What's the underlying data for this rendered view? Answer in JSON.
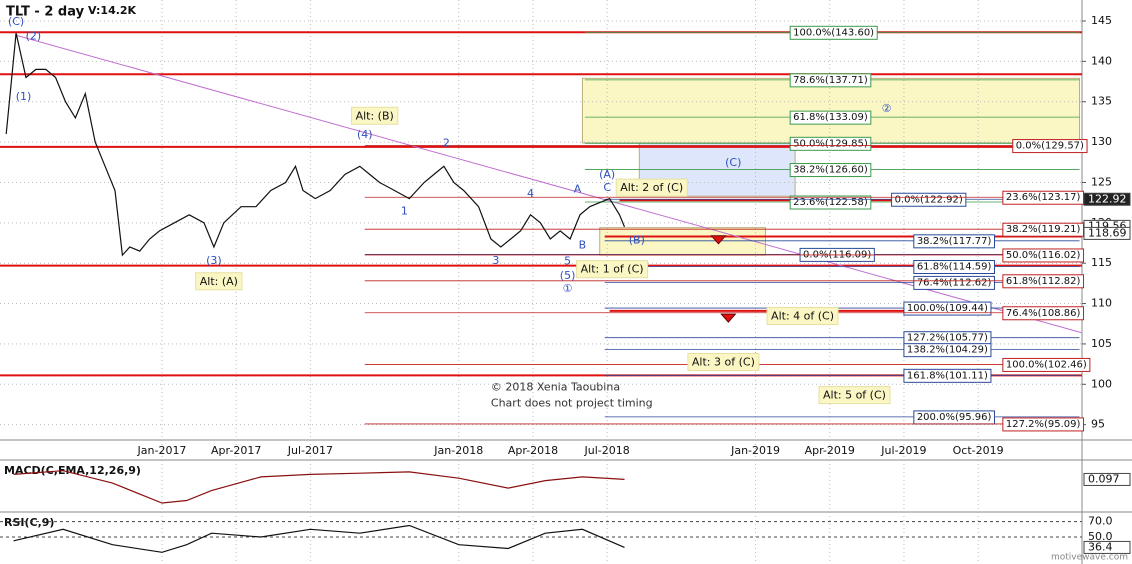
{
  "chart_data": {
    "type": "line",
    "title": "TLT - 2 day",
    "volume": "V:14.2K",
    "xlim": [
      -6.55,
      37.2
    ],
    "ylim": [
      93.1,
      147.6
    ],
    "xticks": [
      {
        "value": 0,
        "label": "Jan-2017"
      },
      {
        "value": 3,
        "label": "Apr-2017"
      },
      {
        "value": 6,
        "label": "Jul-2017"
      },
      {
        "value": 12,
        "label": "Jan-2018"
      },
      {
        "value": 15,
        "label": "Apr-2018"
      },
      {
        "value": 18,
        "label": "Jul-2018"
      },
      {
        "value": 24,
        "label": "Jan-2019"
      },
      {
        "value": 27,
        "label": "Apr-2019"
      },
      {
        "value": 30,
        "label": "Jul-2019"
      },
      {
        "value": 33,
        "label": "Oct-2019"
      }
    ],
    "yticks": [
      145,
      140,
      135,
      130,
      125,
      120,
      115,
      110,
      105,
      100,
      95
    ],
    "grid": true,
    "color": "#111111",
    "x": [
      -6.3,
      -5.9,
      -5.5,
      -5.1,
      -4.7,
      -4.3,
      -3.9,
      -3.5,
      -3.1,
      -2.7,
      -2.3,
      -1.9,
      -1.6,
      -1.3,
      -0.9,
      -0.5,
      -0.1,
      0.5,
      1.1,
      1.7,
      2.1,
      2.5,
      3.2,
      3.8,
      4.4,
      5.0,
      5.4,
      5.7,
      6.2,
      6.8,
      7.4,
      8.0,
      8.4,
      8.8,
      9.4,
      10.0,
      10.6,
      11.0,
      11.4,
      11.8,
      12.2,
      12.8,
      13.3,
      13.7,
      14.1,
      14.5,
      14.9,
      15.3,
      15.7,
      16.1,
      16.5,
      16.9,
      17.3,
      17.7,
      18.1,
      18.5,
      18.7
    ],
    "close": [
      131,
      143.5,
      138,
      139,
      139,
      138,
      135,
      133,
      136,
      130,
      127,
      124,
      116,
      117,
      116.5,
      118,
      119,
      120,
      121,
      120,
      117,
      120,
      122,
      122,
      124,
      125,
      127,
      124,
      123,
      124,
      126,
      127,
      126,
      125,
      124,
      123,
      125,
      126,
      127,
      125,
      124,
      122,
      118,
      117,
      118,
      119,
      121,
      120,
      118,
      119,
      118,
      121,
      122,
      122.5,
      123,
      121,
      119.5
    ],
    "trendline": {
      "color": "#c070d0",
      "x": [
        -5.94,
        37.17
      ],
      "y": [
        143.27,
        106.4
      ]
    },
    "zones": [
      {
        "color": "#fbf7c4",
        "x0": 17.0,
        "x1": 37.1,
        "y0": 129.9,
        "y1": 137.9
      },
      {
        "color": "#dde6fb",
        "x0": 19.3,
        "x1": 25.6,
        "y0": 123.3,
        "y1": 129.9
      },
      {
        "color": "#fbf7c4",
        "x0": 17.7,
        "x1": 24.4,
        "y0": 116.0,
        "y1": 119.4
      }
    ],
    "heavy_lines": {
      "color": "#e01010",
      "items": [
        {
          "value": 143.6,
          "from": -6.55,
          "to": 37.2
        },
        {
          "value": 138.4,
          "from": -6.55,
          "to": 37.2
        },
        {
          "value": 129.4,
          "from": -6.55,
          "to": 37.2
        },
        {
          "value": 114.7,
          "from": -6.55,
          "to": 37.2
        },
        {
          "value": 101.1,
          "from": -6.55,
          "to": 37.2
        },
        {
          "value": 122.8,
          "from": 18.5,
          "to": 30.0
        },
        {
          "value": 118.3,
          "from": 17.9,
          "to": 37.2
        },
        {
          "value": 109.1,
          "from": 18.1,
          "to": 30.0
        }
      ]
    },
    "levels": [
      {
        "value": 143.6,
        "label": "100.0%(143.60)",
        "from": 17.1,
        "to": 37.1,
        "label_at": 25.4,
        "color": "#3a9a4a"
      },
      {
        "value": 137.71,
        "label": "78.6%(137.71)",
        "from": 17.1,
        "to": 37.1,
        "label_at": 25.4,
        "color": "#3a9a4a"
      },
      {
        "value": 133.09,
        "label": "61.8%(133.09)",
        "from": 17.1,
        "to": 37.1,
        "label_at": 25.4,
        "color": "#3a9a4a"
      },
      {
        "value": 129.85,
        "label": "50.0%(129.85)",
        "from": 17.1,
        "to": 37.1,
        "label_at": 25.4,
        "color": "#3a9a4a"
      },
      {
        "value": 126.6,
        "label": "38.2%(126.60)",
        "from": 17.1,
        "to": 37.1,
        "label_at": 25.4,
        "color": "#3a9a4a"
      },
      {
        "value": 122.58,
        "label": "23.6%(122.58)",
        "from": 17.1,
        "to": 37.1,
        "label_at": 25.4,
        "color": "#3a9a4a"
      },
      {
        "value": 122.92,
        "label": "0.0%(122.92)",
        "from": 17.9,
        "to": 37.1,
        "label_at": 29.5,
        "color": "#2a4a9a"
      },
      {
        "value": 117.77,
        "label": "38.2%(117.77)",
        "from": 17.9,
        "to": 37.1,
        "label_at": 30.4,
        "color": "#2a4a9a"
      },
      {
        "value": 116.09,
        "label": "0.0%(116.09)",
        "from": 8.2,
        "to": 37.1,
        "label_at": 25.8,
        "color": "#2a4a9a"
      },
      {
        "value": 114.59,
        "label": "61.8%(114.59)",
        "from": 17.9,
        "to": 37.1,
        "label_at": 30.4,
        "color": "#2a4a9a"
      },
      {
        "value": 112.62,
        "label": "76.4%(112.62)",
        "from": 17.9,
        "to": 37.1,
        "label_at": 30.4,
        "color": "#2a4a9a"
      },
      {
        "value": 109.44,
        "label": "100.0%(109.44)",
        "from": 17.9,
        "to": 37.1,
        "label_at": 30.0,
        "color": "#2a4a9a"
      },
      {
        "value": 105.77,
        "label": "127.2%(105.77)",
        "from": 17.9,
        "to": 37.1,
        "label_at": 30.0,
        "color": "#2a4a9a"
      },
      {
        "value": 104.29,
        "label": "138.2%(104.29)",
        "from": 17.9,
        "to": 37.1,
        "label_at": 30.0,
        "color": "#2a4a9a"
      },
      {
        "value": 101.11,
        "label": "161.8%(101.11)",
        "from": 17.9,
        "to": 37.1,
        "label_at": 30.0,
        "color": "#2a4a9a"
      },
      {
        "value": 95.96,
        "label": "200.0%(95.96)",
        "from": 17.9,
        "to": 37.1,
        "label_at": 30.4,
        "color": "#2a4a9a"
      },
      {
        "value": 129.57,
        "label": "0.0%(129.57)",
        "from": 8.2,
        "to": 37.1,
        "label_at": 34.4,
        "color": "#c02020"
      },
      {
        "value": 123.17,
        "label": "23.6%(123.17)",
        "from": 8.2,
        "to": 37.1,
        "label_at": 34.0,
        "color": "#c02020"
      },
      {
        "value": 119.21,
        "label": "38.2%(119.21)",
        "from": 8.2,
        "to": 37.1,
        "label_at": 34.0,
        "color": "#c02020"
      },
      {
        "value": 116.02,
        "label": "50.0%(116.02)",
        "from": 8.2,
        "to": 37.1,
        "label_at": 34.0,
        "color": "#c02020"
      },
      {
        "value": 112.82,
        "label": "61.8%(112.82)",
        "from": 8.2,
        "to": 37.1,
        "label_at": 34.0,
        "color": "#c02020"
      },
      {
        "value": 108.86,
        "label": "76.4%(108.86)",
        "from": 8.2,
        "to": 37.1,
        "label_at": 34.0,
        "color": "#c02020"
      },
      {
        "value": 102.46,
        "label": "100.0%(102.46)",
        "from": 8.2,
        "to": 37.1,
        "label_at": 34.0,
        "color": "#c02020"
      },
      {
        "value": 95.09,
        "label": "127.2%(95.09)",
        "from": 8.2,
        "to": 37.1,
        "label_at": 34.0,
        "color": "#c02020"
      }
    ],
    "markers": {
      "color": "#e01010",
      "x": [
        22.5,
        22.9
      ],
      "y": [
        117.9,
        108.2
      ]
    },
    "annotations": [
      {
        "text": "Alt: (B)",
        "x": 8.6,
        "y": 133.2,
        "boxed": true
      },
      {
        "text": "Alt: (A)",
        "x": 2.3,
        "y": 112.7,
        "boxed": true
      },
      {
        "text": "Alt: 2 of (C)",
        "x": 19.8,
        "y": 124.3,
        "boxed": true
      },
      {
        "text": "Alt: 1 of (C)",
        "x": 18.2,
        "y": 114.2,
        "boxed": true
      },
      {
        "text": "Alt: 4 of (C)",
        "x": 25.9,
        "y": 108.4,
        "boxed": true
      },
      {
        "text": "Alt: 3 of (C)",
        "x": 22.7,
        "y": 102.7,
        "boxed": true
      },
      {
        "text": "Alt: 5 of (C)",
        "x": 28.0,
        "y": 98.6,
        "boxed": true
      },
      {
        "text": "(C)",
        "x": -5.9,
        "y": 144.9,
        "boxed": false
      },
      {
        "text": "(2)",
        "x": -5.2,
        "y": 143.1,
        "boxed": false
      },
      {
        "text": "(1)",
        "x": -5.6,
        "y": 135.6,
        "boxed": false
      },
      {
        "text": "(3)",
        "x": 2.1,
        "y": 115.3,
        "boxed": false
      },
      {
        "text": "(4)",
        "x": 8.2,
        "y": 130.9,
        "boxed": false
      },
      {
        "text": "2",
        "x": 11.5,
        "y": 129.8,
        "boxed": false
      },
      {
        "text": "1",
        "x": 9.8,
        "y": 121.4,
        "boxed": false
      },
      {
        "text": "3",
        "x": 13.5,
        "y": 115.3,
        "boxed": false
      },
      {
        "text": "4",
        "x": 14.9,
        "y": 123.6,
        "boxed": false
      },
      {
        "text": "A",
        "x": 16.8,
        "y": 124.1,
        "boxed": false
      },
      {
        "text": "B",
        "x": 17.0,
        "y": 117.2,
        "boxed": false
      },
      {
        "text": "C",
        "x": 18.0,
        "y": 124.3,
        "boxed": false
      },
      {
        "text": "(A)",
        "x": 18.0,
        "y": 125.9,
        "boxed": false
      },
      {
        "text": "(B)",
        "x": 19.2,
        "y": 117.8,
        "boxed": false
      },
      {
        "text": "5",
        "x": 16.4,
        "y": 115.2,
        "boxed": false
      },
      {
        "text": "(5)",
        "x": 16.4,
        "y": 113.4,
        "boxed": false
      },
      {
        "text": "①",
        "x": 16.4,
        "y": 111.8,
        "boxed": false
      },
      {
        "text": "②",
        "x": 29.3,
        "y": 134.1,
        "boxed": false
      },
      {
        "text": "(C)",
        "x": 23.1,
        "y": 127.4,
        "boxed": false
      }
    ],
    "notes": [
      {
        "text": "© 2018 Xenia Taoubina",
        "x": 13.3,
        "y": 99.6
      },
      {
        "text": "Chart does not project timing",
        "x": 13.3,
        "y": 97.6
      }
    ],
    "price_tags": [
      {
        "value": 122.92,
        "dark": true
      },
      {
        "value": 119.56,
        "dark": false
      },
      {
        "value": 118.69,
        "dark": false
      }
    ],
    "macd": {
      "label": "MACD(C,EMA,12,26,9)",
      "color": "#8a1010",
      "ylim": [
        -2.2,
        1.5
      ],
      "x": [
        -6,
        -4,
        -2,
        0,
        1,
        2,
        4,
        6,
        8,
        10,
        12,
        14,
        15.5,
        17,
        18.7
      ],
      "values": [
        0.5,
        0.8,
        -0.2,
        -1.8,
        -1.6,
        -0.8,
        0.3,
        0.5,
        0.6,
        0.7,
        0.2,
        -0.6,
        0.0,
        0.3,
        0.097
      ],
      "last": 0.097
    },
    "rsi": {
      "label": "RSI(C,9)",
      "color": "#111111",
      "ylim": [
        20,
        80
      ],
      "yticks": [
        {
          "value": 70,
          "label": "70.0"
        },
        {
          "value": 50,
          "label": "50.0"
        }
      ],
      "x": [
        -6,
        -4,
        -2,
        0,
        1,
        2,
        4,
        6,
        8,
        10,
        12,
        14,
        15.5,
        17,
        18.7
      ],
      "values": [
        45,
        60,
        40,
        30,
        40,
        55,
        50,
        60,
        55,
        65,
        40,
        35,
        55,
        60,
        36.4
      ],
      "last": 36.4
    },
    "watermark": "motivewave.com"
  }
}
